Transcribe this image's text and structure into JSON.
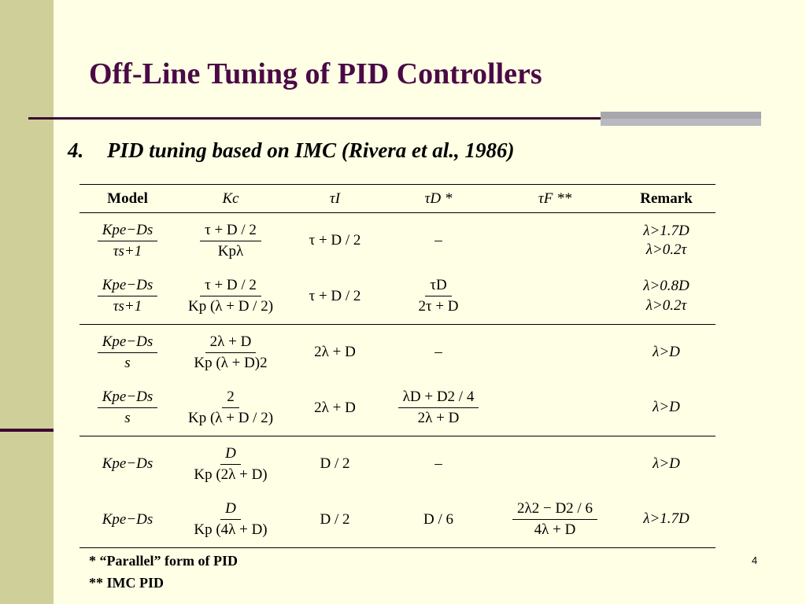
{
  "title": "Off-Line Tuning of PID Controllers",
  "subtitle": {
    "number": "4.",
    "text": "PID tuning based on IMC (Rivera et al., 1986)"
  },
  "table": {
    "headers": [
      "Model",
      "Kc",
      "τI",
      "τD *",
      "τF **",
      "Remark"
    ],
    "rows": [
      {
        "model_num": "Kpe−Ds",
        "model_den": "τs+1",
        "kc_num": "τ + D / 2",
        "kc_den": "Kpλ",
        "ti": "τ + D / 2",
        "td": "–",
        "tf": "",
        "remark": [
          "λ>1.7D",
          "λ>0.2τ"
        ]
      },
      {
        "model_num": "Kpe−Ds",
        "model_den": "τs+1",
        "kc_num": "τ + D / 2",
        "kc_den": "Kp (λ + D / 2)",
        "ti": "τ + D / 2",
        "td_num": "τD",
        "td_den": "2τ + D",
        "tf": "",
        "remark": [
          "λ>0.8D",
          "λ>0.2τ"
        ]
      },
      {
        "model_num": "Kpe−Ds",
        "model_den": "s",
        "kc_num": "2λ + D",
        "kc_den": "Kp (λ + D)2",
        "ti": "2λ + D",
        "td": "–",
        "tf": "",
        "remark": [
          "λ>D"
        ]
      },
      {
        "model_num": "Kpe−Ds",
        "model_den": "s",
        "kc_num": "2",
        "kc_den": "Kp (λ + D / 2)",
        "ti": "2λ + D",
        "td_num": "λD + D2 / 4",
        "td_den": "2λ + D",
        "tf": "",
        "remark": [
          "λ>D"
        ]
      },
      {
        "model": "Kpe−Ds",
        "kc_num": "D",
        "kc_den": "Kp (2λ + D)",
        "ti": "D / 2",
        "td": "–",
        "tf": "",
        "remark": [
          "λ>D"
        ]
      },
      {
        "model": "Kpe−Ds",
        "kc_num": "D",
        "kc_den": "Kp (4λ + D)",
        "ti": "D / 2",
        "td": "D / 6",
        "tf_num": "2λ2 − D2 / 6",
        "tf_den": "4λ + D",
        "remark": [
          "λ>1.7D"
        ]
      }
    ]
  },
  "footnotes": [
    "* “Parallel” form of PID",
    "** IMC PID"
  ],
  "page_number": "4",
  "colors": {
    "background": "#ffffe5",
    "sidebar": "#cfcf9a",
    "title": "#4a0a45",
    "rule": "#3c0a32"
  }
}
